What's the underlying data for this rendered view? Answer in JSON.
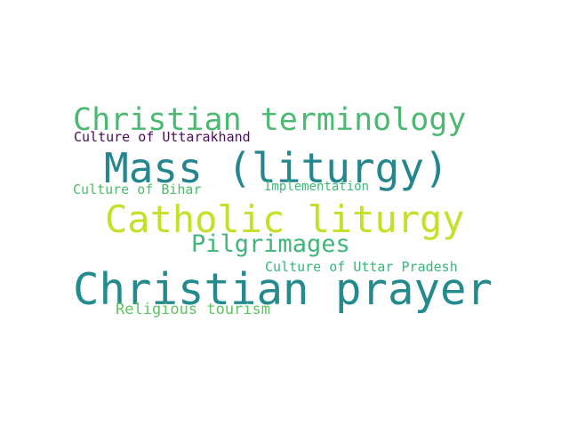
{
  "word_cloud": {
    "words": [
      {
        "text": "Christian terminology",
        "color": "#4cb972"
      },
      {
        "text": "Culture of Uttarakhand",
        "color": "#4b0c5e"
      },
      {
        "text": "Mass (liturgy)",
        "color": "#24868e"
      },
      {
        "text": "Culture of Bihar",
        "color": "#4dbb6a"
      },
      {
        "text": "Implementation",
        "color": "#3fb979"
      },
      {
        "text": "Catholic liturgy",
        "color": "#c6df27"
      },
      {
        "text": "Pilgrimages",
        "color": "#3fb779"
      },
      {
        "text": "Culture of Uttar Pradesh",
        "color": "#37b67c"
      },
      {
        "text": "Christian prayer",
        "color": "#238a8d"
      },
      {
        "text": "Religious tourism",
        "color": "#5ec562"
      }
    ]
  }
}
